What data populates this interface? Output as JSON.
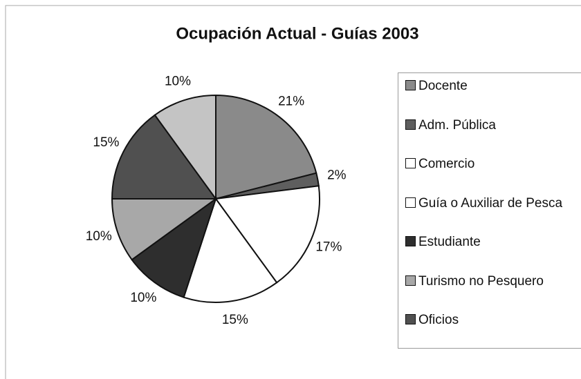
{
  "chart_data": {
    "type": "pie",
    "title": "Ocupación Actual - Guías 2003",
    "categories": [
      "Docente",
      "Adm. Pública",
      "Comercio",
      "Guía o Auxiliar de Pesca",
      "Estudiante",
      "Turismo no Pesquero",
      "Oficios",
      null
    ],
    "values": [
      21,
      2,
      17,
      15,
      10,
      10,
      15,
      10
    ],
    "value_labels": [
      "21%",
      "2%",
      "17%",
      "15%",
      "10%",
      "10%",
      "15%",
      "10%"
    ],
    "colors": [
      "#8a8a8a",
      "#5e5e5e",
      "#ffffff",
      "#ffffff",
      "#2e2e2e",
      "#a8a8a8",
      "#505050",
      "#c4c4c4"
    ],
    "legend": "right"
  }
}
